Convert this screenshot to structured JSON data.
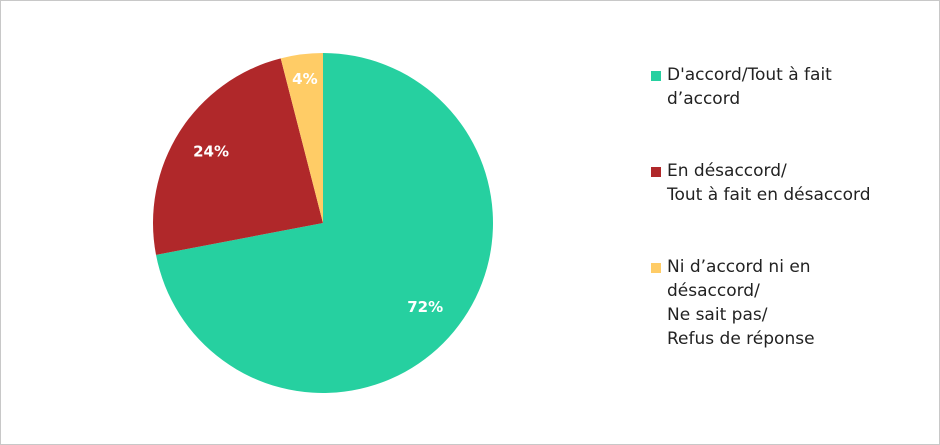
{
  "chart_data": {
    "type": "pie",
    "series": [
      {
        "name": "D'accord/Tout à fait\nd’accord",
        "color": "#26d0a0",
        "values": [
          72
        ],
        "value_labels": [
          "72%"
        ]
      },
      {
        "name": "En désaccord/\nTout à fait en désaccord",
        "color": "#b0282a",
        "values": [
          24
        ],
        "value_labels": [
          "24%"
        ]
      },
      {
        "name": "Ni d’accord ni en\ndésaccord/\nNe sait pas/\nRefus de réponse",
        "color": "#ffcc66",
        "values": [
          4
        ],
        "value_labels": [
          "4%"
        ]
      }
    ],
    "legend": "right"
  }
}
